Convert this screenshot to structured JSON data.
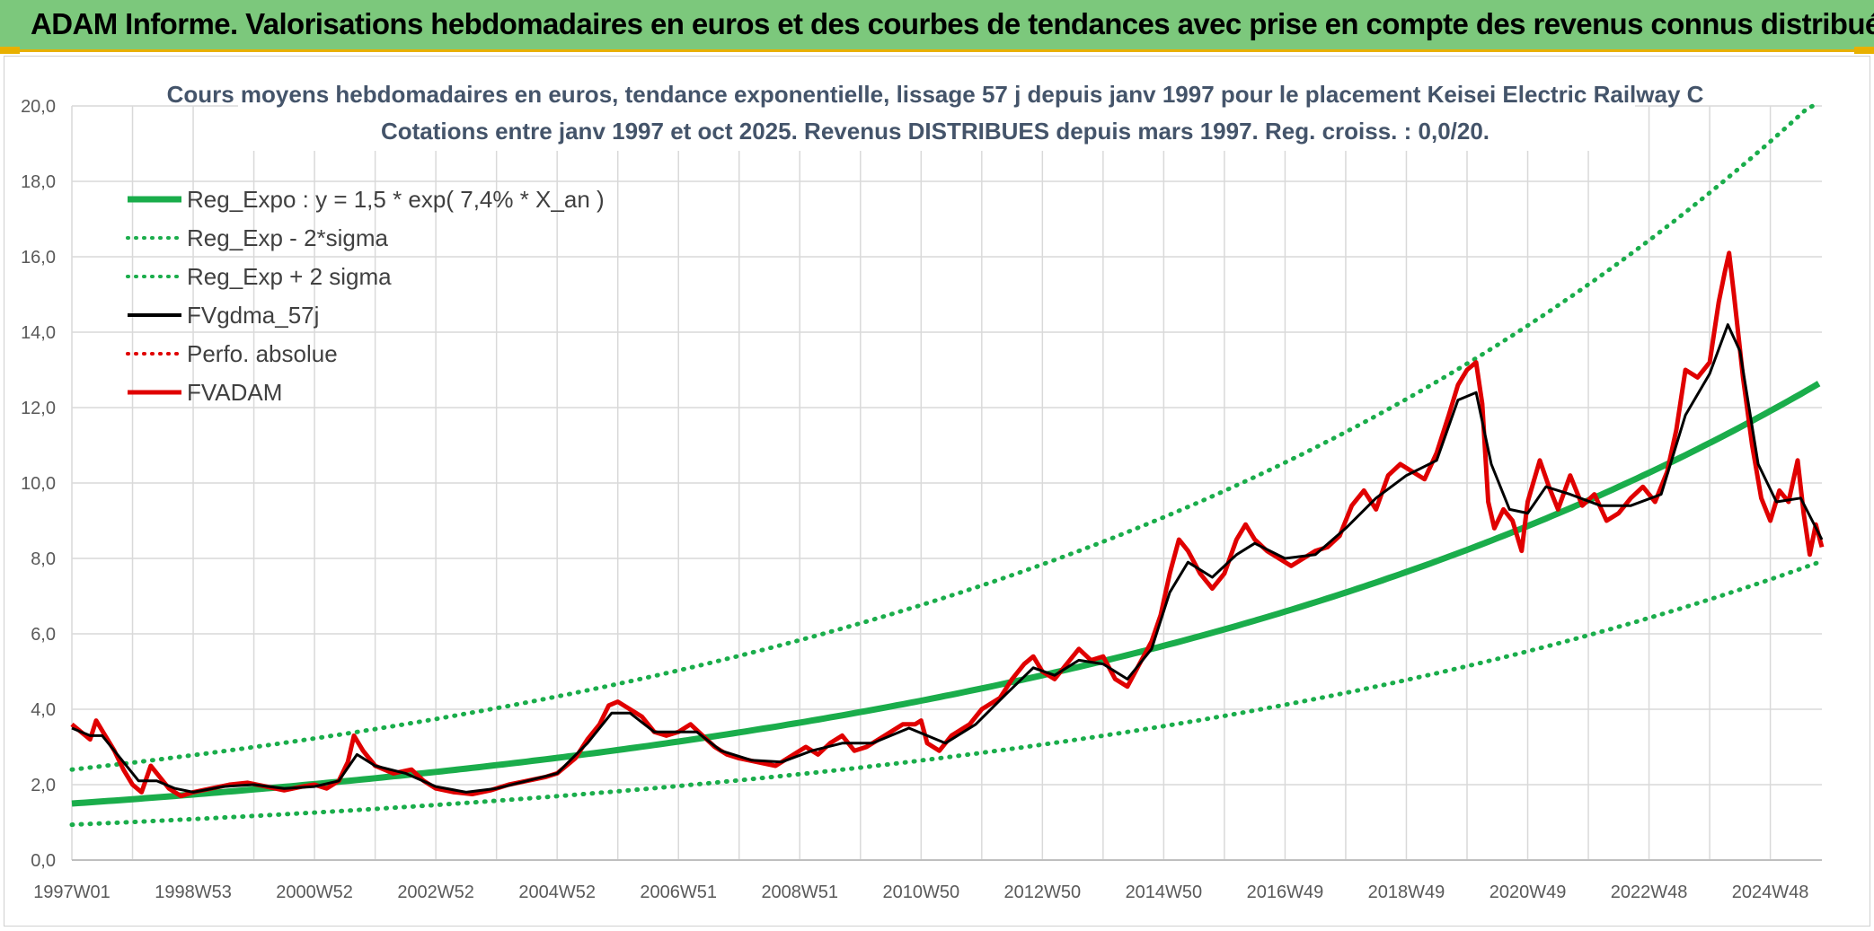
{
  "header": {
    "title": "ADAM Informe. Valorisations hebdomadaires en euros et des courbes de tendances avec prise en compte des revenus connus distribués"
  },
  "chart_data": {
    "type": "line",
    "title": "Cours moyens hebdomadaires en euros, tendance exponentielle, lissage 57 j depuis janv 1997 pour le placement Keisei Electric Railway C",
    "subtitle": "Cotations entre janv 1997 et oct 2025. Revenus DISTRIBUES depuis mars 1997. Reg. croiss. : 0,0/20.",
    "xlabel": "",
    "ylabel": "",
    "x_range_years": [
      1997.0,
      2025.85
    ],
    "ylim": [
      0,
      20
    ],
    "yticks": [
      "0,0",
      "2,0",
      "4,0",
      "6,0",
      "8,0",
      "10,0",
      "12,0",
      "14,0",
      "16,0",
      "18,0",
      "20,0"
    ],
    "xticks": [
      {
        "label": "1997W01",
        "year": 1997.0
      },
      {
        "label": "1998W53",
        "year": 1999.0
      },
      {
        "label": "2000W52",
        "year": 2001.0
      },
      {
        "label": "2002W52",
        "year": 2003.0
      },
      {
        "label": "2004W52",
        "year": 2005.0
      },
      {
        "label": "2006W51",
        "year": 2007.0
      },
      {
        "label": "2008W51",
        "year": 2009.0
      },
      {
        "label": "2010W50",
        "year": 2011.0
      },
      {
        "label": "2012W50",
        "year": 2013.0
      },
      {
        "label": "2014W50",
        "year": 2015.0
      },
      {
        "label": "2016W49",
        "year": 2017.0
      },
      {
        "label": "2018W49",
        "year": 2019.0
      },
      {
        "label": "2020W49",
        "year": 2021.0
      },
      {
        "label": "2022W48",
        "year": 2023.0
      },
      {
        "label": "2024W48",
        "year": 2025.0
      }
    ],
    "regression": {
      "a": 1.5,
      "rate": 0.074,
      "sigma_factor": 1.6
    },
    "legend": [
      {
        "label": "Reg_Expo : y = 1,5 * exp( 7,4% *  X_an )",
        "color": "#1aad4b",
        "style": "solid",
        "width": 7
      },
      {
        "label": "Reg_Exp - 2*sigma",
        "color": "#1aad4b",
        "style": "dotted",
        "width": 5
      },
      {
        "label": "Reg_Exp + 2 sigma",
        "color": "#1aad4b",
        "style": "dotted",
        "width": 5
      },
      {
        "label": "FVgdma_57j",
        "color": "#000000",
        "style": "solid",
        "width": 4
      },
      {
        "label": "Perfo. absolue",
        "color": "#e00000",
        "style": "dotted",
        "width": 4
      },
      {
        "label": "FVADAM",
        "color": "#e00000",
        "style": "solid",
        "width": 5
      }
    ],
    "series": [
      {
        "name": "FVADAM",
        "points": [
          [
            1997.0,
            3.6
          ],
          [
            1997.15,
            3.4
          ],
          [
            1997.3,
            3.2
          ],
          [
            1997.4,
            3.7
          ],
          [
            1997.55,
            3.3
          ],
          [
            1997.7,
            2.9
          ],
          [
            1997.85,
            2.4
          ],
          [
            1998.0,
            2.0
          ],
          [
            1998.15,
            1.8
          ],
          [
            1998.3,
            2.5
          ],
          [
            1998.45,
            2.2
          ],
          [
            1998.6,
            1.9
          ],
          [
            1998.8,
            1.7
          ],
          [
            1999.0,
            1.8
          ],
          [
            1999.3,
            1.9
          ],
          [
            1999.6,
            2.0
          ],
          [
            1999.9,
            2.05
          ],
          [
            2000.2,
            1.95
          ],
          [
            2000.5,
            1.85
          ],
          [
            2000.8,
            1.95
          ],
          [
            2001.0,
            2.0
          ],
          [
            2001.2,
            1.9
          ],
          [
            2001.4,
            2.1
          ],
          [
            2001.55,
            2.6
          ],
          [
            2001.65,
            3.3
          ],
          [
            2001.8,
            2.9
          ],
          [
            2002.0,
            2.5
          ],
          [
            2002.3,
            2.3
          ],
          [
            2002.6,
            2.4
          ],
          [
            2002.8,
            2.1
          ],
          [
            2003.0,
            1.9
          ],
          [
            2003.3,
            1.8
          ],
          [
            2003.6,
            1.75
          ],
          [
            2003.9,
            1.85
          ],
          [
            2004.2,
            2.0
          ],
          [
            2004.5,
            2.1
          ],
          [
            2004.8,
            2.2
          ],
          [
            2005.0,
            2.3
          ],
          [
            2005.3,
            2.7
          ],
          [
            2005.5,
            3.2
          ],
          [
            2005.7,
            3.6
          ],
          [
            2005.85,
            4.1
          ],
          [
            2006.0,
            4.2
          ],
          [
            2006.2,
            4.0
          ],
          [
            2006.4,
            3.8
          ],
          [
            2006.6,
            3.4
          ],
          [
            2006.8,
            3.3
          ],
          [
            2007.0,
            3.4
          ],
          [
            2007.2,
            3.6
          ],
          [
            2007.4,
            3.3
          ],
          [
            2007.6,
            3.0
          ],
          [
            2007.8,
            2.8
          ],
          [
            2008.0,
            2.7
          ],
          [
            2008.3,
            2.6
          ],
          [
            2008.6,
            2.5
          ],
          [
            2008.9,
            2.8
          ],
          [
            2009.1,
            3.0
          ],
          [
            2009.3,
            2.8
          ],
          [
            2009.5,
            3.1
          ],
          [
            2009.7,
            3.3
          ],
          [
            2009.9,
            2.9
          ],
          [
            2010.1,
            3.0
          ],
          [
            2010.4,
            3.3
          ],
          [
            2010.7,
            3.6
          ],
          [
            2010.9,
            3.6
          ],
          [
            2011.0,
            3.7
          ],
          [
            2011.1,
            3.1
          ],
          [
            2011.3,
            2.9
          ],
          [
            2011.5,
            3.3
          ],
          [
            2011.8,
            3.6
          ],
          [
            2012.0,
            4.0
          ],
          [
            2012.3,
            4.3
          ],
          [
            2012.5,
            4.8
          ],
          [
            2012.7,
            5.2
          ],
          [
            2012.85,
            5.4
          ],
          [
            2013.0,
            5.0
          ],
          [
            2013.2,
            4.8
          ],
          [
            2013.4,
            5.2
          ],
          [
            2013.6,
            5.6
          ],
          [
            2013.8,
            5.3
          ],
          [
            2014.0,
            5.4
          ],
          [
            2014.2,
            4.8
          ],
          [
            2014.4,
            4.6
          ],
          [
            2014.6,
            5.2
          ],
          [
            2014.8,
            5.8
          ],
          [
            2014.95,
            6.5
          ],
          [
            2015.1,
            7.6
          ],
          [
            2015.25,
            8.5
          ],
          [
            2015.4,
            8.2
          ],
          [
            2015.6,
            7.6
          ],
          [
            2015.8,
            7.2
          ],
          [
            2016.0,
            7.6
          ],
          [
            2016.2,
            8.5
          ],
          [
            2016.35,
            8.9
          ],
          [
            2016.5,
            8.5
          ],
          [
            2016.7,
            8.2
          ],
          [
            2016.9,
            8.0
          ],
          [
            2017.1,
            7.8
          ],
          [
            2017.3,
            8.0
          ],
          [
            2017.5,
            8.2
          ],
          [
            2017.7,
            8.3
          ],
          [
            2017.9,
            8.6
          ],
          [
            2018.1,
            9.4
          ],
          [
            2018.3,
            9.8
          ],
          [
            2018.5,
            9.3
          ],
          [
            2018.7,
            10.2
          ],
          [
            2018.9,
            10.5
          ],
          [
            2019.1,
            10.3
          ],
          [
            2019.3,
            10.1
          ],
          [
            2019.5,
            10.8
          ],
          [
            2019.7,
            11.8
          ],
          [
            2019.85,
            12.6
          ],
          [
            2020.0,
            13.0
          ],
          [
            2020.15,
            13.2
          ],
          [
            2020.25,
            12.1
          ],
          [
            2020.35,
            9.5
          ],
          [
            2020.45,
            8.8
          ],
          [
            2020.6,
            9.3
          ],
          [
            2020.75,
            9.0
          ],
          [
            2020.9,
            8.2
          ],
          [
            2021.0,
            9.5
          ],
          [
            2021.2,
            10.6
          ],
          [
            2021.35,
            9.9
          ],
          [
            2021.5,
            9.3
          ],
          [
            2021.7,
            10.2
          ],
          [
            2021.9,
            9.4
          ],
          [
            2022.1,
            9.7
          ],
          [
            2022.3,
            9.0
          ],
          [
            2022.5,
            9.2
          ],
          [
            2022.7,
            9.6
          ],
          [
            2022.9,
            9.9
          ],
          [
            2023.1,
            9.5
          ],
          [
            2023.3,
            10.3
          ],
          [
            2023.45,
            11.4
          ],
          [
            2023.6,
            13.0
          ],
          [
            2023.8,
            12.8
          ],
          [
            2024.0,
            13.2
          ],
          [
            2024.15,
            14.8
          ],
          [
            2024.25,
            15.6
          ],
          [
            2024.32,
            16.1
          ],
          [
            2024.4,
            15.0
          ],
          [
            2024.55,
            12.8
          ],
          [
            2024.7,
            11.0
          ],
          [
            2024.85,
            9.6
          ],
          [
            2025.0,
            9.0
          ],
          [
            2025.15,
            9.8
          ],
          [
            2025.3,
            9.5
          ],
          [
            2025.45,
            10.6
          ],
          [
            2025.55,
            9.2
          ],
          [
            2025.65,
            8.1
          ],
          [
            2025.75,
            8.9
          ],
          [
            2025.85,
            8.3
          ]
        ]
      },
      {
        "name": "FVgdma_57j",
        "points": [
          [
            1997.0,
            3.5
          ],
          [
            1997.3,
            3.3
          ],
          [
            1997.5,
            3.3
          ],
          [
            1997.8,
            2.7
          ],
          [
            1998.1,
            2.1
          ],
          [
            1998.4,
            2.1
          ],
          [
            1998.7,
            1.9
          ],
          [
            1999.0,
            1.8
          ],
          [
            1999.5,
            1.95
          ],
          [
            2000.0,
            2.0
          ],
          [
            2000.5,
            1.9
          ],
          [
            2001.0,
            1.95
          ],
          [
            2001.4,
            2.1
          ],
          [
            2001.7,
            2.8
          ],
          [
            2002.0,
            2.5
          ],
          [
            2002.5,
            2.3
          ],
          [
            2003.0,
            1.95
          ],
          [
            2003.5,
            1.8
          ],
          [
            2004.0,
            1.9
          ],
          [
            2004.5,
            2.1
          ],
          [
            2005.0,
            2.3
          ],
          [
            2005.5,
            3.1
          ],
          [
            2005.9,
            3.9
          ],
          [
            2006.2,
            3.9
          ],
          [
            2006.6,
            3.4
          ],
          [
            2007.0,
            3.4
          ],
          [
            2007.3,
            3.4
          ],
          [
            2007.7,
            2.9
          ],
          [
            2008.2,
            2.65
          ],
          [
            2008.7,
            2.6
          ],
          [
            2009.2,
            2.9
          ],
          [
            2009.7,
            3.1
          ],
          [
            2010.2,
            3.1
          ],
          [
            2010.8,
            3.5
          ],
          [
            2011.1,
            3.3
          ],
          [
            2011.4,
            3.1
          ],
          [
            2011.9,
            3.6
          ],
          [
            2012.4,
            4.4
          ],
          [
            2012.85,
            5.1
          ],
          [
            2013.2,
            4.9
          ],
          [
            2013.6,
            5.3
          ],
          [
            2014.0,
            5.2
          ],
          [
            2014.4,
            4.8
          ],
          [
            2014.8,
            5.6
          ],
          [
            2015.1,
            7.1
          ],
          [
            2015.4,
            7.9
          ],
          [
            2015.8,
            7.5
          ],
          [
            2016.2,
            8.1
          ],
          [
            2016.5,
            8.4
          ],
          [
            2017.0,
            8.0
          ],
          [
            2017.5,
            8.1
          ],
          [
            2018.0,
            8.8
          ],
          [
            2018.5,
            9.6
          ],
          [
            2019.0,
            10.2
          ],
          [
            2019.5,
            10.6
          ],
          [
            2019.85,
            12.2
          ],
          [
            2020.15,
            12.4
          ],
          [
            2020.4,
            10.5
          ],
          [
            2020.7,
            9.3
          ],
          [
            2021.0,
            9.2
          ],
          [
            2021.3,
            9.9
          ],
          [
            2021.7,
            9.7
          ],
          [
            2022.2,
            9.4
          ],
          [
            2022.7,
            9.4
          ],
          [
            2023.2,
            9.7
          ],
          [
            2023.6,
            11.8
          ],
          [
            2024.0,
            12.9
          ],
          [
            2024.3,
            14.2
          ],
          [
            2024.5,
            13.5
          ],
          [
            2024.8,
            10.5
          ],
          [
            2025.1,
            9.5
          ],
          [
            2025.5,
            9.6
          ],
          [
            2025.85,
            8.5
          ]
        ]
      }
    ]
  }
}
